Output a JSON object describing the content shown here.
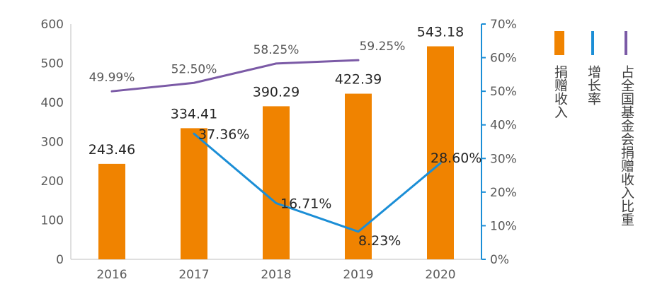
{
  "chart_data": {
    "type": "bar",
    "categories": [
      "2016",
      "2017",
      "2018",
      "2019",
      "2020"
    ],
    "series": [
      {
        "name": "捐赠收入",
        "type": "bar",
        "axis": "left",
        "color": "#F08300",
        "values": [
          243.46,
          334.41,
          390.29,
          422.39,
          543.18
        ],
        "labels": [
          "243.46",
          "334.41",
          "390.29",
          "422.39",
          "543.18"
        ]
      },
      {
        "name": "增长率",
        "type": "line",
        "axis": "right",
        "color": "#1B8ED6",
        "values": [
          null,
          37.36,
          16.71,
          8.23,
          28.6
        ],
        "labels": [
          "",
          "37.36%",
          "16.71%",
          "8.23%",
          "28.60%"
        ]
      },
      {
        "name": "占全国基金会捐赠收入比重",
        "type": "line",
        "axis": "right",
        "color": "#7B5AA6",
        "values": [
          49.99,
          52.5,
          58.25,
          59.25,
          null
        ],
        "labels": [
          "49.99%",
          "52.50%",
          "58.25%",
          "59.25%",
          ""
        ]
      }
    ],
    "y_left": {
      "ylim": [
        0,
        600
      ],
      "ticks": [
        "0",
        "100",
        "200",
        "300",
        "400",
        "500",
        "600"
      ]
    },
    "y_right": {
      "ylim": [
        0,
        70
      ],
      "ticks": [
        "0%",
        "10%",
        "20%",
        "30%",
        "40%",
        "50%",
        "60%",
        "70%"
      ],
      "color": "#1B8ED6"
    },
    "legend_placement": "right",
    "grid": false,
    "title": "",
    "xlabel": "",
    "ylabel": ""
  }
}
